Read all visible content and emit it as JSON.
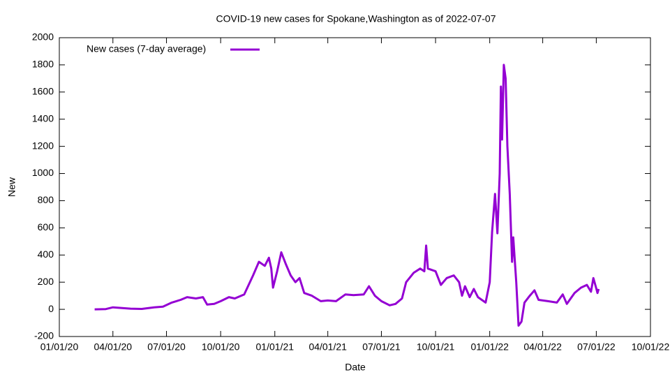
{
  "chart_data": {
    "type": "line",
    "title": "COVID-19 new cases for Spokane,Washington as of 2022-07-07",
    "xlabel": "Date",
    "ylabel": "New",
    "legend": "top-left",
    "x": [
      "2020-03-01",
      "2020-03-20",
      "2020-04-01",
      "2020-04-15",
      "2020-05-01",
      "2020-05-20",
      "2020-06-10",
      "2020-06-25",
      "2020-07-10",
      "2020-07-25",
      "2020-08-05",
      "2020-08-20",
      "2020-09-01",
      "2020-09-08",
      "2020-09-20",
      "2020-10-01",
      "2020-10-15",
      "2020-10-25",
      "2020-11-10",
      "2020-11-25",
      "2020-12-05",
      "2020-12-15",
      "2020-12-22",
      "2020-12-26",
      "2020-12-29",
      "2021-01-05",
      "2021-01-12",
      "2021-01-20",
      "2021-01-28",
      "2021-02-05",
      "2021-02-12",
      "2021-02-20",
      "2021-03-05",
      "2021-03-20",
      "2021-04-01",
      "2021-04-15",
      "2021-05-01",
      "2021-05-15",
      "2021-06-01",
      "2021-06-10",
      "2021-06-20",
      "2021-07-01",
      "2021-07-15",
      "2021-07-25",
      "2021-08-05",
      "2021-08-12",
      "2021-08-25",
      "2021-09-05",
      "2021-09-12",
      "2021-09-15",
      "2021-09-18",
      "2021-10-01",
      "2021-10-10",
      "2021-10-20",
      "2021-11-01",
      "2021-11-10",
      "2021-11-15",
      "2021-11-20",
      "2021-11-28",
      "2021-12-05",
      "2021-12-12",
      "2021-12-25",
      "2022-01-01",
      "2022-01-05",
      "2022-01-10",
      "2022-01-14",
      "2022-01-18",
      "2022-01-20",
      "2022-01-22",
      "2022-01-25",
      "2022-01-28",
      "2022-01-31",
      "2022-02-04",
      "2022-02-08",
      "2022-02-10",
      "2022-02-15",
      "2022-02-19",
      "2022-02-24",
      "2022-03-01",
      "2022-03-10",
      "2022-03-18",
      "2022-03-25",
      "2022-04-10",
      "2022-04-25",
      "2022-05-05",
      "2022-05-12",
      "2022-05-25",
      "2022-06-05",
      "2022-06-15",
      "2022-06-22",
      "2022-06-26",
      "2022-06-30",
      "2022-07-03",
      "2022-07-05"
    ],
    "series": [
      {
        "name": "New cases (7-day average)",
        "color": "#9400d3",
        "values": [
          0,
          2,
          15,
          10,
          5,
          3,
          15,
          20,
          50,
          70,
          90,
          80,
          90,
          35,
          40,
          60,
          90,
          80,
          110,
          250,
          350,
          320,
          380,
          300,
          160,
          280,
          420,
          330,
          250,
          200,
          230,
          120,
          100,
          60,
          65,
          60,
          110,
          105,
          110,
          170,
          100,
          60,
          30,
          40,
          80,
          200,
          270,
          300,
          280,
          470,
          300,
          280,
          180,
          230,
          250,
          200,
          100,
          170,
          90,
          150,
          90,
          50,
          200,
          570,
          850,
          560,
          1000,
          1640,
          1250,
          1800,
          1700,
          1200,
          850,
          350,
          530,
          200,
          -120,
          -90,
          50,
          100,
          140,
          70,
          60,
          50,
          110,
          40,
          120,
          160,
          180,
          130,
          230,
          170,
          120,
          150
        ]
      }
    ],
    "xlim": [
      "2020-01-01",
      "2022-10-01"
    ],
    "xticks": [
      {
        "value": "2020-01-01",
        "label": "01/01/20"
      },
      {
        "value": "2020-04-01",
        "label": "04/01/20"
      },
      {
        "value": "2020-07-01",
        "label": "07/01/20"
      },
      {
        "value": "2020-10-01",
        "label": "10/01/20"
      },
      {
        "value": "2021-01-01",
        "label": "01/01/21"
      },
      {
        "value": "2021-04-01",
        "label": "04/01/21"
      },
      {
        "value": "2021-07-01",
        "label": "07/01/21"
      },
      {
        "value": "2021-10-01",
        "label": "10/01/21"
      },
      {
        "value": "2022-01-01",
        "label": "01/01/22"
      },
      {
        "value": "2022-04-01",
        "label": "04/01/22"
      },
      {
        "value": "2022-07-01",
        "label": "07/01/22"
      },
      {
        "value": "2022-10-01",
        "label": "10/01/22"
      }
    ],
    "ylim": [
      -200,
      2000
    ],
    "yticks": [
      -200,
      0,
      200,
      400,
      600,
      800,
      1000,
      1200,
      1400,
      1600,
      1800,
      2000
    ]
  }
}
